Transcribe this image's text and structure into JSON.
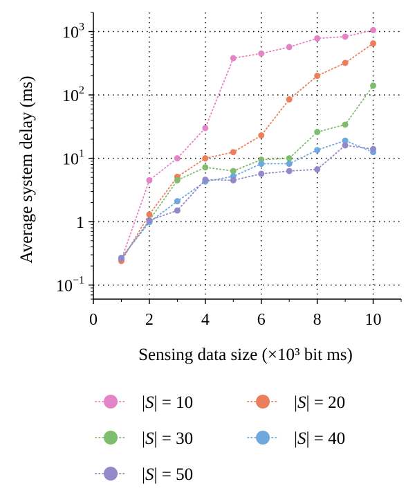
{
  "chart_data": {
    "type": "line",
    "xlabel": "Sensing data size (×10³ bit ms)",
    "ylabel": "Average system delay (ms)",
    "x": [
      1,
      2,
      3,
      4,
      5,
      6,
      7,
      8,
      9,
      10
    ],
    "xlim": [
      0,
      11
    ],
    "ylim": [
      0.06,
      2000
    ],
    "yscale": "log",
    "x_ticks": [
      0,
      2,
      4,
      6,
      8,
      10
    ],
    "x_tick_labels": [
      "0",
      "2",
      "4",
      "6",
      "8",
      "10"
    ],
    "y_ticks": [
      0.1,
      1,
      10,
      100,
      1000
    ],
    "y_tick_labels": [
      {
        "base": "10",
        "exp": "−1"
      },
      {
        "base": "1",
        "exp": ""
      },
      {
        "base": "10",
        "exp": "1"
      },
      {
        "base": "10",
        "exp": "2"
      },
      {
        "base": "10",
        "exp": "3"
      }
    ],
    "grid": true,
    "legend_position": "bottom",
    "series": [
      {
        "name": "|S| = 10",
        "legend_prefix": "|",
        "legend_symbol": "S",
        "legend_suffix": "| = 10",
        "color": "#e384c6",
        "values": [
          0.25,
          4.5,
          10,
          30,
          380,
          450,
          570,
          780,
          830,
          1050
        ]
      },
      {
        "name": "|S| = 20",
        "legend_prefix": "|",
        "legend_symbol": "S",
        "legend_suffix": "| = 20",
        "color": "#ec7e5c",
        "values": [
          0.24,
          1.3,
          5.1,
          10,
          12.5,
          23,
          85,
          200,
          320,
          650
        ]
      },
      {
        "name": "|S| = 30",
        "legend_prefix": "|",
        "legend_symbol": "S",
        "legend_suffix": "| = 30",
        "color": "#7fbd6e",
        "values": [
          0.26,
          1.05,
          4.5,
          7.2,
          6.3,
          9.5,
          10,
          26,
          34,
          140
        ]
      },
      {
        "name": "|S| = 40",
        "legend_prefix": "|",
        "legend_symbol": "S",
        "legend_suffix": "| = 40",
        "color": "#6fa8dc",
        "values": [
          0.27,
          0.98,
          2.1,
          4.3,
          5.2,
          8.2,
          8.2,
          13.5,
          19,
          12.5
        ]
      },
      {
        "name": "|S| = 50",
        "legend_prefix": "|",
        "legend_symbol": "S",
        "legend_suffix": "| = 50",
        "color": "#9489c8",
        "values": [
          0.26,
          1.05,
          1.5,
          4.6,
          4.5,
          5.7,
          6.3,
          6.7,
          16,
          14
        ]
      }
    ]
  }
}
